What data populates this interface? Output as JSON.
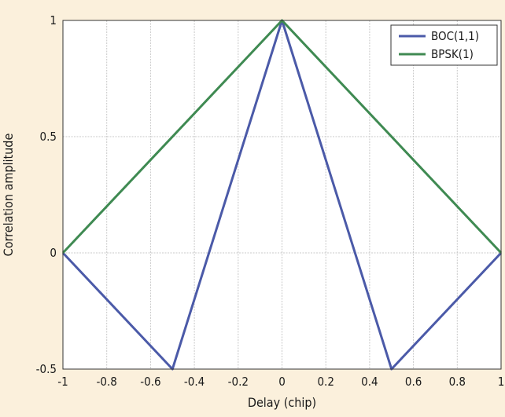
{
  "chart_data": {
    "type": "line",
    "title": "",
    "xlabel": "Delay (chip)",
    "ylabel": "Correlation amplitude",
    "xlim": [
      -1,
      1
    ],
    "ylim": [
      -0.5,
      1
    ],
    "x_ticks": [
      -1,
      -0.8,
      -0.6,
      -0.4,
      -0.2,
      0,
      0.2,
      0.4,
      0.6,
      0.8,
      1
    ],
    "x_tick_labels": [
      "-1",
      "-0.8",
      "-0.6",
      "-0.4",
      "-0.2",
      "0",
      "0.2",
      "0.4",
      "0.6",
      "0.8",
      "1"
    ],
    "y_ticks": [
      -0.5,
      0,
      0.5,
      1
    ],
    "y_tick_labels": [
      "-0.5",
      "0",
      "0.5",
      "1"
    ],
    "grid": true,
    "legend_position": "top-right",
    "series": [
      {
        "name": "BOC(1,1)",
        "color": "#4b5aa8",
        "x": [
          -1,
          -0.5,
          0,
          0.5,
          1
        ],
        "y": [
          0,
          -0.5,
          1,
          -0.5,
          0
        ]
      },
      {
        "name": "BPSK(1)",
        "color": "#3f8a52",
        "x": [
          -1,
          0,
          1
        ],
        "y": [
          0,
          1,
          0
        ]
      }
    ]
  }
}
